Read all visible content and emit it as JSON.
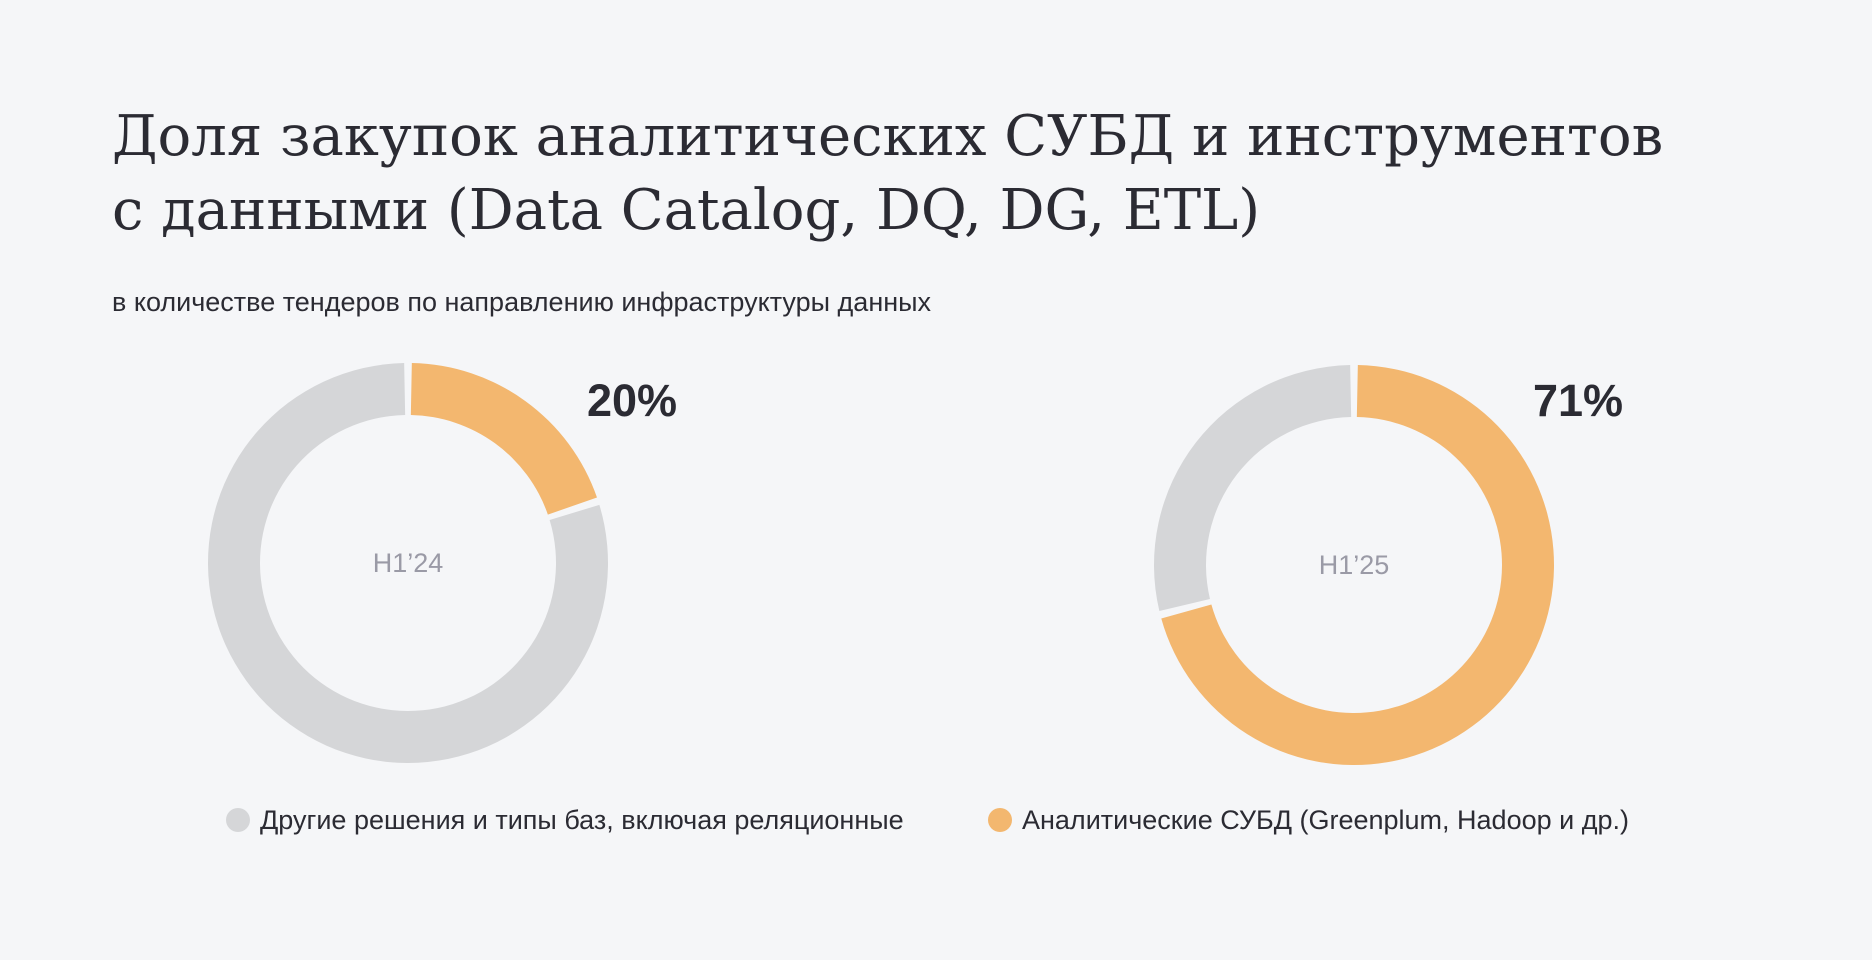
{
  "title_lines": [
    "Доля закупок аналитических СУБД и инструментов",
    "с данными (Data Catalog, DQ, DG, ETL)"
  ],
  "subtitle": "в количестве тендеров по направлению инфраструктуры данных",
  "colors": {
    "background": "#f5f6f8",
    "other": "#d5d6d8",
    "analytic": "#f3b76f",
    "text": "#2b2b33",
    "center_label": "#9a9aa6"
  },
  "legend": [
    {
      "label": "Другие решения и типы баз, включая реляционные",
      "color": "#d5d6d8"
    },
    {
      "label": "Аналитические СУБД (Greenplum, Hadoop и др.)",
      "color": "#f3b76f"
    }
  ],
  "chart_data": [
    {
      "type": "pie",
      "center_label": "H1’24",
      "value_label": "20%",
      "slices": [
        {
          "name": "Аналитические СУБД (Greenplum, Hadoop и др.)",
          "value": 20,
          "color": "#f3b76f"
        },
        {
          "name": "Другие решения и типы баз, включая реляционные",
          "value": 80,
          "color": "#d5d6d8"
        }
      ]
    },
    {
      "type": "pie",
      "center_label": "H1’25",
      "value_label": "71%",
      "slices": [
        {
          "name": "Аналитические СУБД (Greenplum, Hadoop и др.)",
          "value": 71,
          "color": "#f3b76f"
        },
        {
          "name": "Другие решения и типы баз, включая реляционные",
          "value": 29,
          "color": "#d5d6d8"
        }
      ]
    }
  ]
}
